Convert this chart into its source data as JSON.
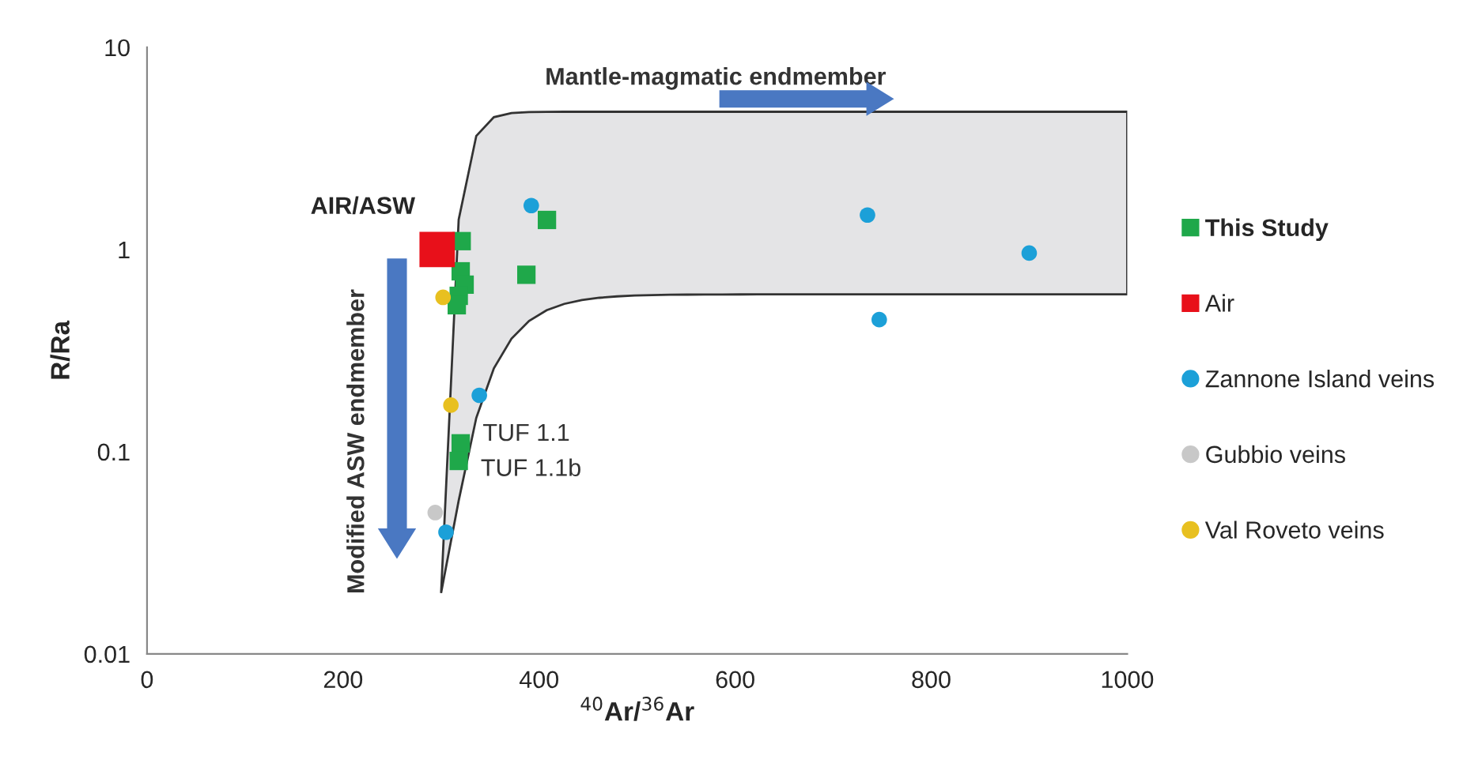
{
  "chart_data": {
    "type": "scatter",
    "xlabel": "$^{40}$Ar/$^{36}$Ar",
    "ylabel": "R/Ra",
    "xlim": [
      0,
      1000
    ],
    "xticks": [
      0,
      200,
      400,
      600,
      800,
      1000
    ],
    "ylim": [
      0.01,
      10
    ],
    "yticks": [
      0.01,
      0.1,
      1,
      10
    ],
    "log": "y",
    "grid": false,
    "legend": "right",
    "series": [
      {
        "name": "This Study",
        "color": "#1fa84a",
        "marker": "square",
        "x": [
          408,
          387,
          321,
          320,
          324,
          318,
          316,
          320,
          318
        ],
        "values": [
          1.4,
          0.75,
          1.1,
          0.78,
          0.67,
          0.59,
          0.53,
          0.11,
          0.09
        ]
      },
      {
        "name": "Air",
        "color": "#e8101a",
        "marker": "square",
        "x": [
          296
        ],
        "values": [
          1
        ]
      },
      {
        "name": "Zannone Island veins",
        "color": "#1ca0d8",
        "marker": "circle",
        "x": [
          392,
          735,
          747,
          900,
          339,
          305
        ],
        "values": [
          1.65,
          1.48,
          0.45,
          0.96,
          0.19,
          0.04
        ]
      },
      {
        "name": "Gubbio veins",
        "color": "#c8c8c8",
        "marker": "circle",
        "x": [
          294
        ],
        "values": [
          0.05
        ]
      },
      {
        "name": "Val Roveto veins",
        "color": "#e8c020",
        "marker": "circle",
        "x": [
          302,
          310
        ],
        "values": [
          0.58,
          0.17
        ]
      }
    ],
    "annotations": [
      {
        "text": "AIR/ASW",
        "x": 296,
        "y": 1
      },
      {
        "text": "TUF 1.1",
        "x": 320,
        "y": 0.11
      },
      {
        "text": "TUF 1.1b",
        "x": 318,
        "y": 0.09
      },
      "Mantle-magmatic endmember",
      "Modified ASW endmember"
    ]
  }
}
